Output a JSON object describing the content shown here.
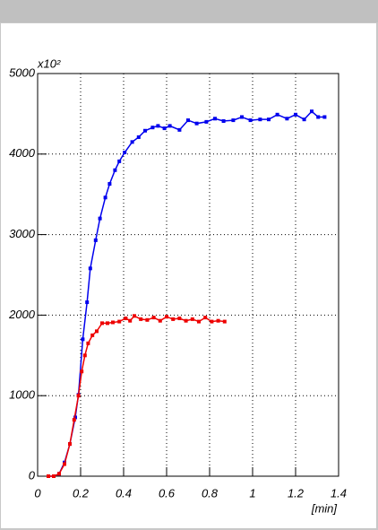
{
  "chart_data": {
    "type": "line",
    "x_label": "[min]",
    "y_multiplier": "x10²",
    "xlim": [
      0,
      1.4
    ],
    "xticks": [
      0,
      0.2,
      0.4,
      0.6,
      0.8,
      1,
      1.2,
      1.4
    ],
    "ylim": [
      0,
      5000
    ],
    "yticks": [
      0,
      1000,
      2000,
      3000,
      4000,
      5000
    ],
    "grid": true,
    "series": [
      {
        "color": "#0000ee",
        "x": [
          0.05,
          0.075,
          0.1,
          0.125,
          0.15,
          0.175,
          0.19,
          0.21,
          0.23,
          0.245,
          0.27,
          0.29,
          0.315,
          0.335,
          0.36,
          0.38,
          0.405,
          0.44,
          0.47,
          0.5,
          0.535,
          0.56,
          0.59,
          0.615,
          0.66,
          0.7,
          0.74,
          0.785,
          0.825,
          0.865,
          0.91,
          0.95,
          0.99,
          1.035,
          1.075,
          1.115,
          1.16,
          1.2,
          1.24,
          1.275,
          1.305,
          1.335
        ],
        "values": [
          0,
          0,
          30,
          170,
          400,
          730,
          1010,
          1700,
          2160,
          2580,
          2930,
          3200,
          3460,
          3630,
          3800,
          3910,
          4020,
          4150,
          4210,
          4290,
          4330,
          4350,
          4320,
          4350,
          4300,
          4420,
          4380,
          4400,
          4440,
          4410,
          4420,
          4460,
          4420,
          4430,
          4430,
          4490,
          4440,
          4490,
          4430,
          4530,
          4460,
          4460
        ]
      },
      {
        "color": "#ee0000",
        "x": [
          0.05,
          0.075,
          0.1,
          0.125,
          0.15,
          0.17,
          0.19,
          0.205,
          0.22,
          0.235,
          0.255,
          0.275,
          0.3,
          0.325,
          0.35,
          0.38,
          0.41,
          0.43,
          0.45,
          0.48,
          0.51,
          0.54,
          0.57,
          0.6,
          0.63,
          0.66,
          0.69,
          0.72,
          0.75,
          0.78,
          0.81,
          0.84,
          0.87
        ],
        "values": [
          0,
          0,
          30,
          150,
          400,
          700,
          1000,
          1300,
          1500,
          1650,
          1750,
          1800,
          1900,
          1900,
          1910,
          1920,
          1960,
          1930,
          1990,
          1950,
          1940,
          1970,
          1930,
          1980,
          1950,
          1960,
          1930,
          1950,
          1920,
          1970,
          1920,
          1930,
          1920
        ]
      }
    ]
  }
}
